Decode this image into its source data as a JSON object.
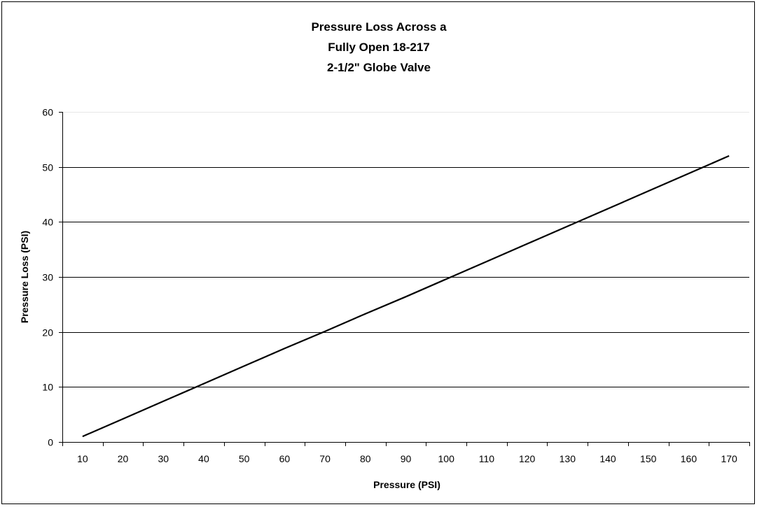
{
  "chart_data": {
    "type": "line",
    "title": [
      "Pressure Loss Across a",
      "Fully Open 18-217",
      "2-1/2\" Globe Valve"
    ],
    "xlabel": "Pressure (PSI)",
    "ylabel": "Pressure Loss (PSI)",
    "categories": [
      "10",
      "20",
      "30",
      "40",
      "50",
      "60",
      "70",
      "80",
      "90",
      "100",
      "110",
      "120",
      "130",
      "140",
      "150",
      "160",
      "170"
    ],
    "ylim": [
      0,
      60
    ],
    "yticks": [
      0,
      10,
      20,
      30,
      40,
      50,
      60
    ],
    "grid": "horizontal major gridlines",
    "legend": "none",
    "series": [
      {
        "values": [
          1,
          4.2,
          7.4,
          10.6,
          13.8,
          17,
          20.1,
          23.3,
          26.4,
          29.6,
          32.8,
          36,
          39.2,
          42.4,
          45.6,
          48.8,
          52
        ],
        "color": "#000000"
      }
    ]
  }
}
